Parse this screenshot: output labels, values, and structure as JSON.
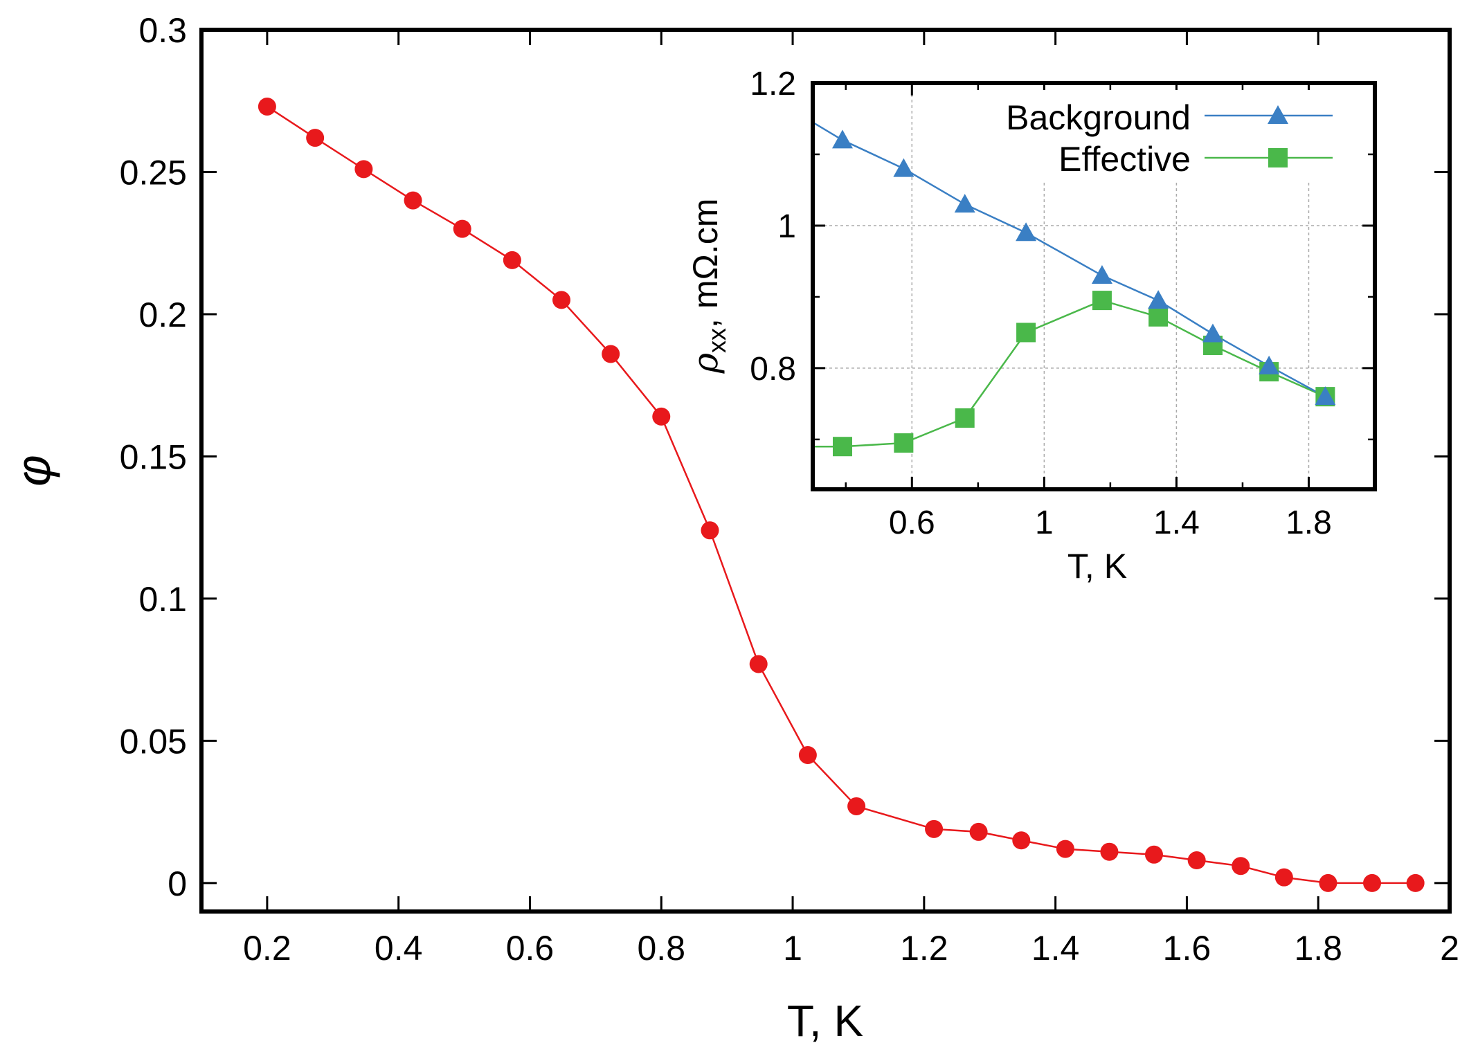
{
  "chart_data": [
    {
      "type": "line",
      "title": "",
      "xlabel": "T, K",
      "ylabel": "φ",
      "xlim": [
        0.1,
        2.0
      ],
      "ylim": [
        -0.01,
        0.3
      ],
      "xticks": [
        0.2,
        0.4,
        0.6,
        0.8,
        1,
        1.2,
        1.4,
        1.6,
        1.8,
        2
      ],
      "xtick_labels": [
        "0.2",
        "0.4",
        "0.6",
        "0.8",
        "1",
        "1.2",
        "1.4",
        "1.6",
        "1.8",
        "2"
      ],
      "yticks": [
        0,
        0.05,
        0.1,
        0.15,
        0.2,
        0.25,
        0.3
      ],
      "ytick_labels": [
        "0",
        "0.05",
        "0.1",
        "0.15",
        "0.2",
        "0.25",
        "0.3"
      ],
      "grid": false,
      "series": [
        {
          "name": "phi",
          "color": "#e8191c",
          "marker": "circle",
          "x": [
            0.2,
            0.273,
            0.347,
            0.422,
            0.497,
            0.573,
            0.648,
            0.723,
            0.8,
            0.874,
            0.948,
            1.023,
            1.097,
            1.215,
            1.283,
            1.348,
            1.415,
            1.482,
            1.55,
            1.615,
            1.682,
            1.748,
            1.815,
            1.882,
            1.948
          ],
          "y": [
            0.273,
            0.262,
            0.251,
            0.24,
            0.23,
            0.219,
            0.205,
            0.186,
            0.164,
            0.124,
            0.077,
            0.045,
            0.027,
            0.019,
            0.018,
            0.015,
            0.012,
            0.011,
            0.01,
            0.008,
            0.006,
            0.002,
            0.0,
            0.0,
            0.0
          ]
        }
      ]
    },
    {
      "type": "line",
      "title": "",
      "xlabel": "T, K",
      "ylabel_main": "ρ",
      "ylabel_sub": "xx",
      "ylabel_rest": ", mΩ.cm",
      "xlim": [
        0.3,
        2.0
      ],
      "ylim": [
        0.63,
        1.2
      ],
      "xticks": [
        0.6,
        1,
        1.4,
        1.8
      ],
      "xtick_labels": [
        "0.6",
        "1",
        "1.4",
        "1.8"
      ],
      "yticks": [
        0.8,
        1,
        1.2
      ],
      "ytick_labels": [
        "0.8",
        "1",
        "1.2"
      ],
      "minor_xticks": [
        0.4,
        0.8,
        1.2,
        1.6
      ],
      "minor_yticks": [
        0.7,
        0.9,
        1.1
      ],
      "grid": true,
      "legend_position": "top-right",
      "series": [
        {
          "name": "Background",
          "color": "#3a7fc4",
          "marker": "triangle",
          "line_x_start": 0.3,
          "line_y_start": 1.145,
          "x": [
            0.39,
            0.575,
            0.76,
            0.945,
            1.175,
            1.345,
            1.51,
            1.68,
            1.85
          ],
          "y": [
            1.12,
            1.08,
            1.03,
            0.99,
            0.93,
            0.895,
            0.848,
            0.803,
            0.76
          ]
        },
        {
          "name": "Effective",
          "color": "#4ab84a",
          "marker": "square",
          "line_x_start": 0.3,
          "line_y_start": 0.69,
          "x": [
            0.39,
            0.575,
            0.76,
            0.945,
            1.175,
            1.345,
            1.51,
            1.68,
            1.85
          ],
          "y": [
            0.69,
            0.695,
            0.73,
            0.85,
            0.895,
            0.872,
            0.832,
            0.795,
            0.76
          ]
        }
      ]
    }
  ]
}
